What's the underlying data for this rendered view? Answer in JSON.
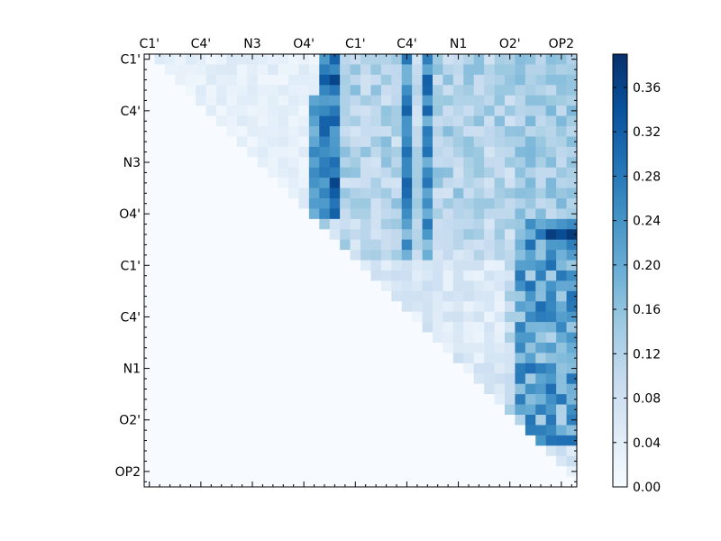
{
  "chart_data": {
    "type": "heatmap",
    "colormap": "Blues",
    "colors": {
      "low": "#f7fbff",
      "high": "#08306b"
    },
    "size": 42,
    "tick_every": 5,
    "x_ticks": [
      "C1'",
      "C4'",
      "N3",
      "O4'",
      "C1'",
      "C4'",
      "N1",
      "O2'",
      "OP2"
    ],
    "y_ticks": [
      "C1'",
      "C4'",
      "N3",
      "O4'",
      "C1'",
      "C4'",
      "N1",
      "O2'",
      "OP2"
    ],
    "colorbar": {
      "vmin": 0.0,
      "vmax": 0.39,
      "ticks": [
        "0.00",
        "0.04",
        "0.08",
        "0.12",
        "0.16",
        "0.20",
        "0.24",
        "0.28",
        "0.32",
        "0.36"
      ]
    },
    "description": "Upper-triangular correlation map (42x42). Strong values concentrate in columns 17-18 (~0.30-0.39), columns 25 and 27 (~0.20-0.34), and the lower-right block (rows 20-38, columns 36-41, ~0.15-0.33). Lower triangle is empty (0)."
  }
}
